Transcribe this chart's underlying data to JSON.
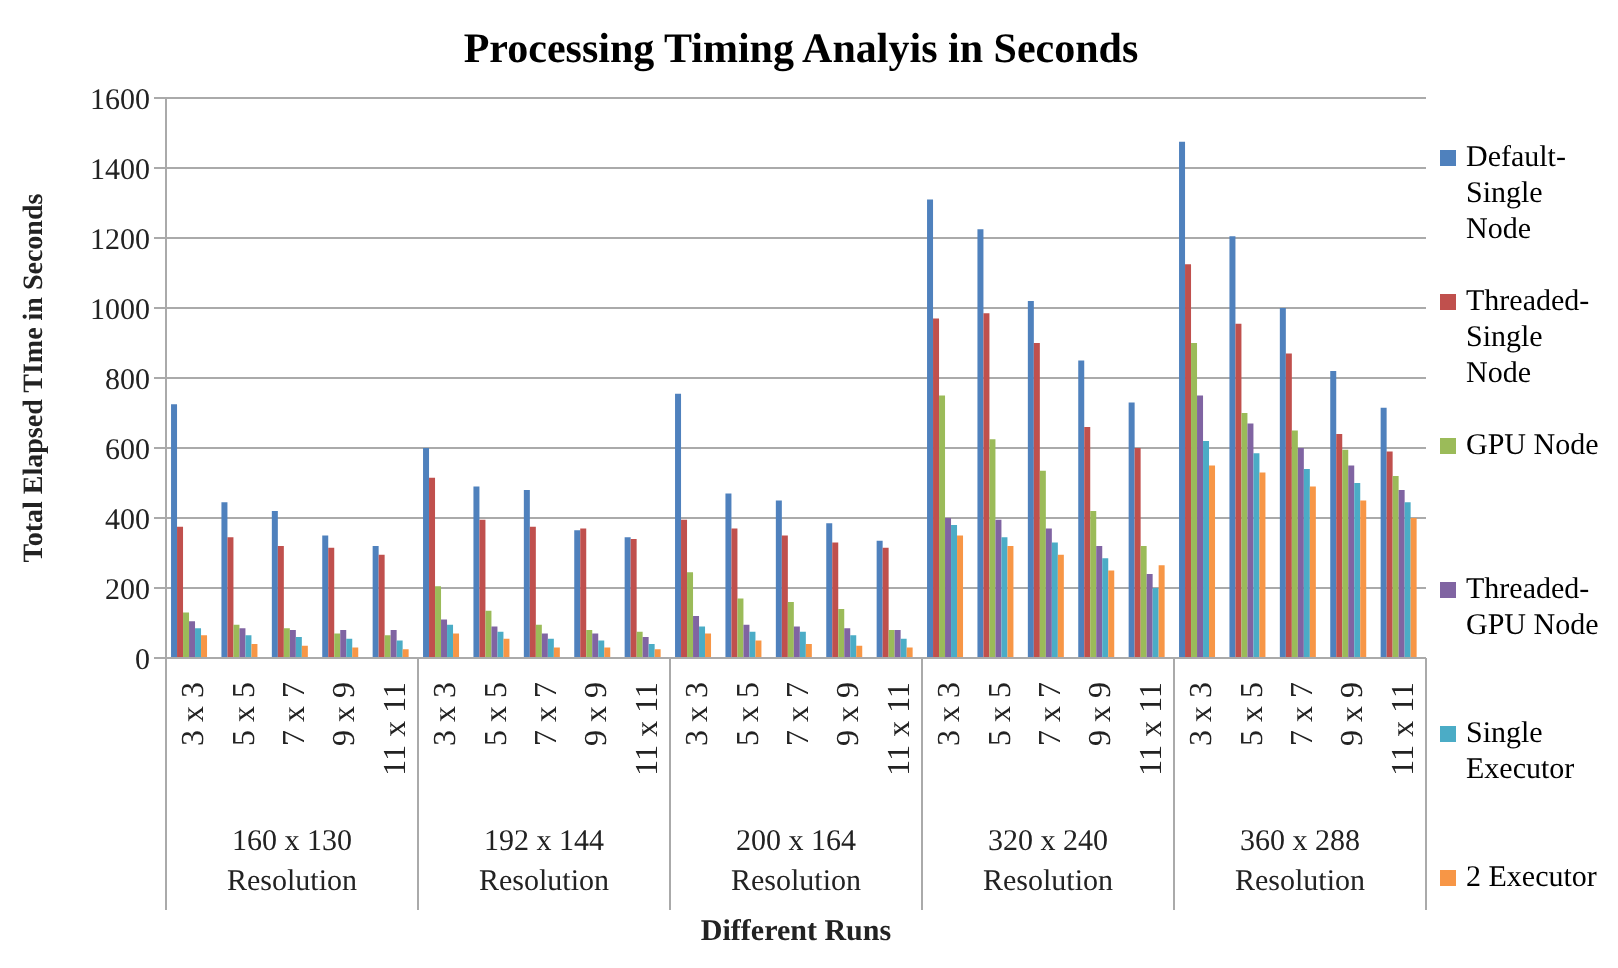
{
  "chart_data": {
    "type": "bar",
    "title": "Processing Timing Analyis in Seconds",
    "xlabel": "Different Runs",
    "ylabel": "Total Elapsed TIme in Seconds",
    "categories": [
      "3 x 3",
      "5 x 5",
      "7 x 7",
      "9 x 9",
      "11 x 11",
      "3 x 3",
      "5 x 5",
      "7 x 7",
      "9 x 9",
      "11 x 11",
      "3 x 3",
      "5 x 5",
      "7 x 7",
      "9 x 9",
      "11 x 11",
      "3 x 3",
      "5 x 5",
      "7 x 7",
      "9 x 9",
      "11 x 11",
      "3 x 3",
      "5 x 5",
      "7 x 7",
      "9 x 9",
      "11 x 11"
    ],
    "annotations": [
      "160 x 130 Resolution",
      "192 x 144 Resolution",
      "200 x 164 Resolution",
      "320 x 240 Resolution",
      "360 x 288 Resolution"
    ],
    "series": [
      {
        "name": "Default-Single Node",
        "color": "#4f81bd",
        "values": [
          725,
          445,
          420,
          350,
          320,
          600,
          490,
          480,
          365,
          345,
          755,
          470,
          450,
          385,
          335,
          1310,
          1225,
          1020,
          850,
          730,
          1475,
          1205,
          1000,
          820,
          715
        ]
      },
      {
        "name": "Threaded-Single Node",
        "color": "#c0504d",
        "values": [
          375,
          345,
          320,
          315,
          295,
          515,
          395,
          375,
          370,
          340,
          395,
          370,
          350,
          330,
          315,
          970,
          985,
          900,
          660,
          600,
          1125,
          955,
          870,
          640,
          590
        ]
      },
      {
        "name": "GPU Node",
        "color": "#9bbb59",
        "values": [
          130,
          95,
          85,
          70,
          65,
          205,
          135,
          95,
          80,
          75,
          245,
          170,
          160,
          140,
          80,
          750,
          625,
          535,
          420,
          320,
          900,
          700,
          650,
          595,
          520
        ]
      },
      {
        "name": "Threaded-GPU Node",
        "color": "#8064a2",
        "values": [
          105,
          85,
          80,
          80,
          80,
          110,
          90,
          70,
          70,
          60,
          120,
          95,
          90,
          85,
          80,
          400,
          395,
          370,
          320,
          240,
          750,
          670,
          600,
          550,
          480
        ]
      },
      {
        "name": "Single Executor",
        "color": "#4bacc6",
        "values": [
          85,
          65,
          60,
          55,
          50,
          95,
          75,
          55,
          50,
          40,
          90,
          75,
          75,
          65,
          55,
          380,
          345,
          330,
          285,
          200,
          620,
          585,
          540,
          500,
          445
        ]
      },
      {
        "name": "2 Executor",
        "color": "#f79646",
        "values": [
          65,
          40,
          35,
          30,
          25,
          70,
          55,
          30,
          30,
          25,
          70,
          50,
          40,
          35,
          30,
          350,
          320,
          295,
          250,
          265,
          550,
          530,
          490,
          450,
          400
        ]
      }
    ],
    "ylim": [
      0,
      1600
    ],
    "yticks": [
      0,
      200,
      400,
      600,
      800,
      1000,
      1200,
      1400,
      1600
    ],
    "grid": "y",
    "legend": "right"
  }
}
